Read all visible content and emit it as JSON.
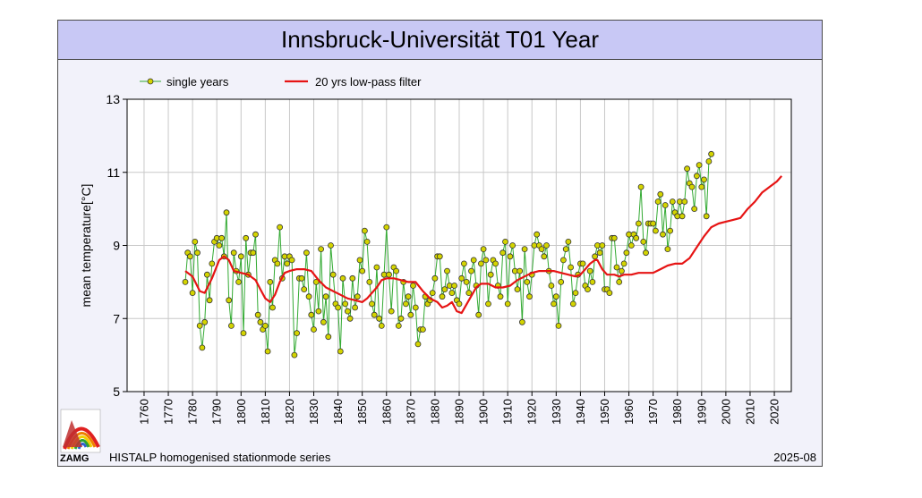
{
  "chart_data": {
    "type": "line",
    "title": "Innsbruck-Universität T01 Year",
    "xlabel": "",
    "ylabel": "mean temperature[°C]",
    "xlim": [
      1753,
      2027
    ],
    "ylim": [
      5,
      13
    ],
    "xticks": [
      "1760",
      "1770",
      "1780",
      "1790",
      "1800",
      "1810",
      "1820",
      "1830",
      "1840",
      "1850",
      "1860",
      "1870",
      "1880",
      "1890",
      "1900",
      "1910",
      "1920",
      "1930",
      "1940",
      "1950",
      "1960",
      "1970",
      "1980",
      "1990",
      "2000",
      "2010",
      "2020"
    ],
    "yticks": [
      "5",
      "7",
      "9",
      "11",
      "13"
    ],
    "grid": true,
    "legend_position": "top-left",
    "series": [
      {
        "name": "single years",
        "x_start": 1777,
        "values": [
          8.0,
          8.8,
          8.7,
          7.7,
          9.1,
          8.8,
          6.8,
          6.2,
          6.9,
          8.2,
          7.5,
          8.5,
          9.1,
          9.2,
          9.0,
          9.2,
          8.7,
          9.9,
          7.5,
          6.8,
          8.8,
          8.3,
          8.0,
          8.7,
          6.6,
          9.2,
          8.2,
          8.8,
          8.8,
          9.3,
          7.1,
          6.9,
          6.7,
          6.8,
          6.1,
          8.0,
          7.3,
          8.6,
          8.5,
          9.5,
          8.1,
          8.7,
          8.5,
          8.7,
          8.6,
          6.0,
          6.6,
          8.1,
          8.1,
          7.8,
          8.8,
          7.6,
          7.1,
          6.7,
          8.0,
          7.2,
          8.9,
          6.9,
          7.6,
          6.5,
          9.0,
          8.2,
          7.4,
          7.3,
          6.1,
          8.1,
          7.4,
          7.2,
          7.0,
          8.1,
          7.3,
          7.6,
          8.6,
          8.3,
          9.4,
          9.1,
          8.0,
          7.4,
          7.1,
          8.4,
          7.0,
          6.8,
          8.2,
          9.5,
          8.2,
          7.2,
          8.4,
          8.3,
          6.8,
          7.0,
          8.0,
          7.4,
          7.6,
          7.1,
          7.9,
          7.3,
          6.3,
          6.7,
          6.7,
          7.6,
          7.4,
          7.5,
          7.7,
          8.1,
          8.7,
          8.7,
          7.6,
          7.8,
          8.3,
          7.9,
          7.7,
          7.9,
          7.5,
          7.4,
          8.1,
          8.5,
          8.0,
          7.7,
          8.3,
          8.6,
          7.9,
          7.1,
          8.5,
          8.9,
          8.6,
          7.4,
          8.2,
          8.6,
          8.5,
          7.9,
          7.6,
          8.8,
          9.1,
          7.4,
          8.7,
          9.0,
          8.3,
          7.8,
          8.3,
          6.9,
          8.9,
          8.0,
          7.6,
          8.2,
          9.0,
          9.3,
          9.0,
          8.9,
          8.7,
          9.0,
          8.3,
          7.9,
          7.4,
          7.6,
          6.8,
          8.0,
          8.6,
          8.9,
          9.1,
          8.4,
          7.4,
          7.7,
          8.2,
          8.5,
          8.5,
          7.9,
          7.8,
          8.3,
          8.0,
          8.7,
          9.0,
          8.8,
          9.0,
          7.8,
          7.8,
          7.7,
          9.2,
          9.2,
          8.4,
          8.0,
          8.3,
          8.5,
          8.8,
          9.3,
          9.0,
          9.3,
          9.2,
          9.6,
          10.6,
          9.1,
          8.8,
          9.6,
          9.6,
          9.6,
          9.4,
          10.2,
          10.4,
          9.3,
          10.1,
          8.9,
          9.4,
          10.2,
          9.9,
          9.8,
          10.2,
          9.8,
          10.2,
          11.1,
          10.7,
          10.6,
          10.0,
          10.9,
          11.2,
          10.6,
          10.8,
          9.8,
          11.3,
          11.5
        ]
      },
      {
        "name": "20 yrs low-pass filter",
        "points": [
          [
            1777,
            8.3
          ],
          [
            1780,
            8.15
          ],
          [
            1783,
            7.75
          ],
          [
            1785,
            7.7
          ],
          [
            1788,
            8.1
          ],
          [
            1791,
            8.6
          ],
          [
            1793,
            8.7
          ],
          [
            1795,
            8.6
          ],
          [
            1797,
            8.3
          ],
          [
            1800,
            8.25
          ],
          [
            1803,
            8.2
          ],
          [
            1806,
            8.05
          ],
          [
            1808,
            7.8
          ],
          [
            1810,
            7.55
          ],
          [
            1812,
            7.45
          ],
          [
            1814,
            7.65
          ],
          [
            1816,
            8.0
          ],
          [
            1818,
            8.25
          ],
          [
            1820,
            8.3
          ],
          [
            1823,
            8.35
          ],
          [
            1826,
            8.35
          ],
          [
            1829,
            8.3
          ],
          [
            1832,
            8.05
          ],
          [
            1835,
            7.85
          ],
          [
            1838,
            7.75
          ],
          [
            1841,
            7.65
          ],
          [
            1844,
            7.55
          ],
          [
            1847,
            7.5
          ],
          [
            1850,
            7.45
          ],
          [
            1852,
            7.55
          ],
          [
            1854,
            7.7
          ],
          [
            1856,
            7.85
          ],
          [
            1858,
            8.05
          ],
          [
            1860,
            8.1
          ],
          [
            1863,
            8.1
          ],
          [
            1866,
            8.05
          ],
          [
            1869,
            8.0
          ],
          [
            1872,
            8.0
          ],
          [
            1875,
            7.75
          ],
          [
            1878,
            7.55
          ],
          [
            1881,
            7.45
          ],
          [
            1883,
            7.3
          ],
          [
            1885,
            7.35
          ],
          [
            1887,
            7.45
          ],
          [
            1889,
            7.2
          ],
          [
            1891,
            7.15
          ],
          [
            1894,
            7.5
          ],
          [
            1897,
            7.85
          ],
          [
            1899,
            7.95
          ],
          [
            1902,
            7.95
          ],
          [
            1905,
            7.85
          ],
          [
            1908,
            7.85
          ],
          [
            1911,
            7.9
          ],
          [
            1914,
            8.05
          ],
          [
            1917,
            8.15
          ],
          [
            1920,
            8.25
          ],
          [
            1923,
            8.3
          ],
          [
            1926,
            8.3
          ],
          [
            1929,
            8.3
          ],
          [
            1932,
            8.25
          ],
          [
            1935,
            8.2
          ],
          [
            1938,
            8.15
          ],
          [
            1940,
            8.2
          ],
          [
            1942,
            8.35
          ],
          [
            1944,
            8.5
          ],
          [
            1946,
            8.6
          ],
          [
            1947,
            8.6
          ],
          [
            1949,
            8.35
          ],
          [
            1951,
            8.2
          ],
          [
            1954,
            8.2
          ],
          [
            1956,
            8.15
          ],
          [
            1958,
            8.2
          ],
          [
            1961,
            8.2
          ],
          [
            1964,
            8.25
          ],
          [
            1967,
            8.25
          ],
          [
            1970,
            8.25
          ],
          [
            1973,
            8.35
          ],
          [
            1976,
            8.45
          ],
          [
            1979,
            8.5
          ],
          [
            1982,
            8.5
          ],
          [
            1985,
            8.65
          ],
          [
            1988,
            8.95
          ],
          [
            1991,
            9.25
          ],
          [
            1994,
            9.5
          ],
          [
            1997,
            9.6
          ],
          [
            2000,
            9.65
          ],
          [
            2003,
            9.7
          ],
          [
            2006,
            9.75
          ],
          [
            2009,
            10.0
          ],
          [
            2012,
            10.2
          ],
          [
            2015,
            10.45
          ],
          [
            2018,
            10.6
          ],
          [
            2021,
            10.75
          ],
          [
            2023,
            10.9
          ]
        ]
      }
    ],
    "colors": {
      "single_years_line": "#33aa33",
      "single_years_marker": "#d4d400",
      "filter_line": "#e61414",
      "grid": "#c8c8c8"
    }
  },
  "footer": {
    "logo_text": "ZAMG",
    "caption": "HISTALP homogenised stationmode series",
    "date": "2025-08"
  }
}
